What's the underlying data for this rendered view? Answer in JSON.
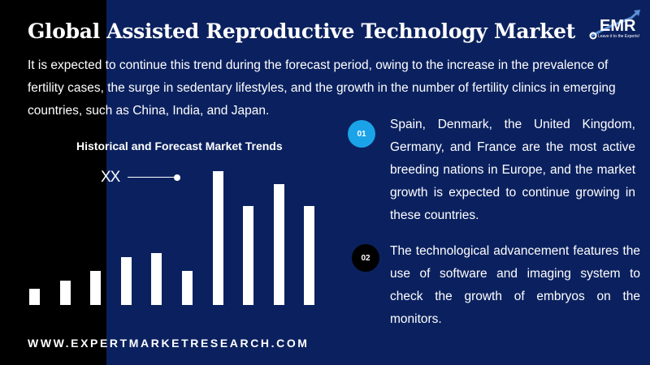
{
  "title": "Global Assisted Reproductive Technology Market",
  "intro": "It is expected to continue this trend during the forecast period, owing to the increase in the prevalence of fertility cases, the surge in sedentary lifestyles, and the growth in the number of fertility clinics in emerging countries, such as China, India, and Japan.",
  "logo": {
    "text": "EMR",
    "tagline": "Leave it to the Experts!"
  },
  "points": [
    {
      "number": "01",
      "text": "Spain, Denmark, the United Kingdom, Germany, and France are the most active breeding nations in Europe, and the market growth is expected to continue growing in these countries."
    },
    {
      "number": "02",
      "text": "The technological advancement features the use of software and imaging system to check the growth of embryos on the monitors."
    }
  ],
  "footer_url": "WWW.EXPERTMARKETRESEARCH.COM",
  "chart_data": {
    "type": "bar",
    "title": "Historical and Forecast Market Trends",
    "legend": "XX",
    "values": [
      20,
      30,
      42,
      59,
      64,
      42,
      165,
      122,
      149,
      122
    ],
    "ylim": [
      0,
      170
    ]
  },
  "colors": {
    "background": "#0b215f",
    "badge1": "#1aa3e8"
  }
}
